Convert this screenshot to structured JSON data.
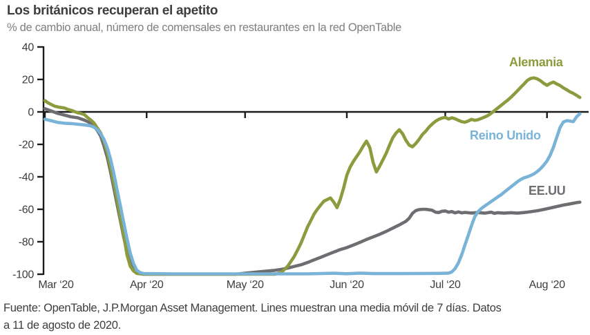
{
  "header": {
    "title": "Los británicos recuperan el apetito",
    "subtitle": "% de cambio anual, número de comensales en restaurantes en la red OpenTable"
  },
  "footer": {
    "line1": "Fuente: OpenTable, J.P.Morgan Asset Management. Lines muestran una media móvil de 7 días. Datos",
    "line2": "a 11 de agosto de 2020."
  },
  "colors": {
    "axis": "#1a1a1a",
    "title_text": "#3d3d3d",
    "subtitle_text": "#7e7e7e",
    "germany": "#8d9a3d",
    "uk": "#79b3d7",
    "us": "#6d6e71"
  },
  "chart_data": {
    "type": "line",
    "title": "Los británicos recuperan el apetito",
    "subtitle": "% de cambio anual, número de comensales en restaurantes en la red OpenTable",
    "source": "Fuente: OpenTable, J.P.Morgan Asset Management. Lines muestran una media móvil de 7 días. Datos a 11 de agosto de 2020.",
    "xlabel": "",
    "ylabel": "% de cambio anual",
    "grid": false,
    "legend_position": "inline-labels",
    "ylim": [
      -100,
      40
    ],
    "y_ticks": [
      40,
      20,
      0,
      -20,
      -40,
      -60,
      -80,
      -100
    ],
    "x_unit": "days since 1 Mar 2020, data through 11 Aug 2020",
    "x_ticks": [
      {
        "day": 0,
        "label": "Mar ‘20"
      },
      {
        "day": 31,
        "label": "Apr ‘20"
      },
      {
        "day": 61,
        "label": "May ‘20"
      },
      {
        "day": 92,
        "label": "Jun ‘20"
      },
      {
        "day": 122,
        "label": "Jul ‘20"
      },
      {
        "day": 153,
        "label": "Aug ‘20"
      }
    ],
    "series": [
      {
        "name": "EE.UU",
        "color": "#6d6e71",
        "points": [
          [
            0,
            2
          ],
          [
            2,
            0.5
          ],
          [
            4,
            -1
          ],
          [
            6,
            -2
          ],
          [
            8,
            -3
          ],
          [
            10,
            -3.6
          ],
          [
            12,
            -5
          ],
          [
            13,
            -6
          ],
          [
            14,
            -7
          ],
          [
            15,
            -9
          ],
          [
            16,
            -11.5
          ],
          [
            17,
            -15
          ],
          [
            18,
            -21
          ],
          [
            19,
            -28
          ],
          [
            20,
            -37
          ],
          [
            21,
            -47
          ],
          [
            22,
            -57
          ],
          [
            23,
            -67
          ],
          [
            24,
            -77
          ],
          [
            25,
            -86
          ],
          [
            26,
            -92
          ],
          [
            27,
            -96.5
          ],
          [
            28,
            -98.5
          ],
          [
            29,
            -99.5
          ],
          [
            30,
            -100
          ],
          [
            40,
            -100
          ],
          [
            50,
            -100
          ],
          [
            58,
            -100
          ],
          [
            62,
            -99.2
          ],
          [
            66,
            -98.4
          ],
          [
            70,
            -97.6
          ],
          [
            72,
            -97
          ],
          [
            74,
            -96.2
          ],
          [
            76,
            -95.2
          ],
          [
            78,
            -94.2
          ],
          [
            80,
            -92.8
          ],
          [
            82,
            -91.2
          ],
          [
            84,
            -89.6
          ],
          [
            86,
            -88
          ],
          [
            88,
            -86.4
          ],
          [
            90,
            -84.8
          ],
          [
            92,
            -83.6
          ],
          [
            94,
            -82
          ],
          [
            96,
            -80.4
          ],
          [
            98,
            -78.6
          ],
          [
            100,
            -77
          ],
          [
            102,
            -75.4
          ],
          [
            104,
            -73.6
          ],
          [
            106,
            -71.6
          ],
          [
            108,
            -69.6
          ],
          [
            110,
            -67.4
          ],
          [
            111,
            -65.5
          ],
          [
            112,
            -62.5
          ],
          [
            113,
            -60.8
          ],
          [
            114,
            -60.2
          ],
          [
            115,
            -60
          ],
          [
            116,
            -60
          ],
          [
            117,
            -60.3
          ],
          [
            118,
            -60.6
          ],
          [
            119,
            -61.8
          ],
          [
            120,
            -62
          ],
          [
            121,
            -61.2
          ],
          [
            122,
            -61
          ],
          [
            123,
            -61.8
          ],
          [
            124,
            -61.4
          ],
          [
            125,
            -62.2
          ],
          [
            126,
            -61.6
          ],
          [
            127,
            -62.2
          ],
          [
            128,
            -61.9
          ],
          [
            130,
            -62.3
          ],
          [
            132,
            -62
          ],
          [
            134,
            -62.4
          ],
          [
            136,
            -61.8
          ],
          [
            137,
            -62.5
          ],
          [
            138,
            -62.1
          ],
          [
            140,
            -62.4
          ],
          [
            142,
            -62.1
          ],
          [
            144,
            -62.4
          ],
          [
            146,
            -62
          ],
          [
            148,
            -61.5
          ],
          [
            150,
            -60.9
          ],
          [
            152,
            -60.1
          ],
          [
            154,
            -59.2
          ],
          [
            156,
            -58.3
          ],
          [
            158,
            -57.4
          ],
          [
            160,
            -56.7
          ],
          [
            162,
            -55.9
          ],
          [
            163,
            -55.6
          ]
        ]
      },
      {
        "name": "Alemania",
        "color": "#8d9a3d",
        "points": [
          [
            0,
            7
          ],
          [
            1,
            5.5
          ],
          [
            2,
            4.5
          ],
          [
            3,
            3.5
          ],
          [
            4,
            3
          ],
          [
            5,
            2.7
          ],
          [
            6,
            2.4
          ],
          [
            7,
            1.5
          ],
          [
            8,
            1
          ],
          [
            9,
            0.2
          ],
          [
            10,
            -0.5
          ],
          [
            11,
            -1
          ],
          [
            12,
            -1.6
          ],
          [
            13,
            -3.5
          ],
          [
            14,
            -5
          ],
          [
            15,
            -7
          ],
          [
            16,
            -10
          ],
          [
            17,
            -13
          ],
          [
            18,
            -18
          ],
          [
            19,
            -25
          ],
          [
            20,
            -34
          ],
          [
            21,
            -44
          ],
          [
            22,
            -54
          ],
          [
            23,
            -65
          ],
          [
            24,
            -76
          ],
          [
            25,
            -88
          ],
          [
            26,
            -95
          ],
          [
            27,
            -98
          ],
          [
            28,
            -99.5
          ],
          [
            30,
            -100
          ],
          [
            40,
            -100
          ],
          [
            50,
            -100
          ],
          [
            60,
            -100
          ],
          [
            70,
            -100
          ],
          [
            71,
            -99.5
          ],
          [
            72,
            -99
          ],
          [
            73,
            -97
          ],
          [
            74,
            -95
          ],
          [
            75,
            -92
          ],
          [
            76,
            -89
          ],
          [
            77,
            -85
          ],
          [
            78,
            -81
          ],
          [
            79,
            -76
          ],
          [
            80,
            -71
          ],
          [
            81,
            -67
          ],
          [
            82,
            -63
          ],
          [
            83,
            -60
          ],
          [
            84,
            -57.5
          ],
          [
            85,
            -55
          ],
          [
            86,
            -54
          ],
          [
            87,
            -53
          ],
          [
            88,
            -55.5
          ],
          [
            89,
            -59
          ],
          [
            90,
            -54
          ],
          [
            91,
            -47
          ],
          [
            92,
            -39
          ],
          [
            93,
            -34
          ],
          [
            94,
            -30.5
          ],
          [
            95,
            -27.5
          ],
          [
            96,
            -24.5
          ],
          [
            97,
            -21
          ],
          [
            98,
            -18
          ],
          [
            99,
            -22
          ],
          [
            100,
            -31
          ],
          [
            101,
            -37
          ],
          [
            102,
            -33.5
          ],
          [
            103,
            -29.5
          ],
          [
            104,
            -25.5
          ],
          [
            105,
            -20.5
          ],
          [
            106,
            -16
          ],
          [
            107,
            -13
          ],
          [
            108,
            -11
          ],
          [
            109,
            -13.5
          ],
          [
            110,
            -17.5
          ],
          [
            111,
            -20.5
          ],
          [
            112,
            -21.5
          ],
          [
            113,
            -19.5
          ],
          [
            114,
            -17
          ],
          [
            115,
            -14
          ],
          [
            116,
            -12
          ],
          [
            117,
            -9.5
          ],
          [
            118,
            -7.5
          ],
          [
            119,
            -5.8
          ],
          [
            120,
            -4.6
          ],
          [
            121,
            -3.8
          ],
          [
            122,
            -3.4
          ],
          [
            123,
            -4.4
          ],
          [
            124,
            -3.6
          ],
          [
            125,
            -4.2
          ],
          [
            126,
            -5.2
          ],
          [
            127,
            -6
          ],
          [
            128,
            -6.4
          ],
          [
            129,
            -5.6
          ],
          [
            130,
            -4.6
          ],
          [
            131,
            -5.2
          ],
          [
            132,
            -4.8
          ],
          [
            133,
            -4
          ],
          [
            134,
            -3.2
          ],
          [
            135,
            -2.2
          ],
          [
            136,
            -0.8
          ],
          [
            137,
            0.8
          ],
          [
            138,
            2.4
          ],
          [
            139,
            4
          ],
          [
            140,
            5.6
          ],
          [
            141,
            7.2
          ],
          [
            142,
            9
          ],
          [
            143,
            11
          ],
          [
            144,
            13
          ],
          [
            145,
            15.2
          ],
          [
            146,
            17.2
          ],
          [
            147,
            19.4
          ],
          [
            148,
            20.6
          ],
          [
            149,
            21
          ],
          [
            150,
            20.4
          ],
          [
            151,
            19.2
          ],
          [
            152,
            17.6
          ],
          [
            153,
            16.4
          ],
          [
            154,
            17.6
          ],
          [
            155,
            18.4
          ],
          [
            156,
            17.2
          ],
          [
            157,
            16.2
          ],
          [
            158,
            14.8
          ],
          [
            159,
            13.6
          ],
          [
            160,
            12.4
          ],
          [
            161,
            11.4
          ],
          [
            162,
            10.2
          ],
          [
            163,
            8.9
          ]
        ]
      },
      {
        "name": "Reino Unido",
        "color": "#79b3d7",
        "points": [
          [
            0,
            -4.5
          ],
          [
            2,
            -5.5
          ],
          [
            4,
            -6.5
          ],
          [
            6,
            -7
          ],
          [
            8,
            -7.2
          ],
          [
            10,
            -7.6
          ],
          [
            12,
            -8
          ],
          [
            14,
            -8.6
          ],
          [
            15,
            -9.5
          ],
          [
            16,
            -11
          ],
          [
            17,
            -13.5
          ],
          [
            18,
            -17
          ],
          [
            19,
            -22
          ],
          [
            20,
            -29
          ],
          [
            21,
            -38
          ],
          [
            22,
            -48
          ],
          [
            23,
            -58
          ],
          [
            24,
            -68
          ],
          [
            25,
            -78
          ],
          [
            26,
            -87
          ],
          [
            27,
            -93.5
          ],
          [
            28,
            -97.5
          ],
          [
            29,
            -99
          ],
          [
            30,
            -99.6
          ],
          [
            40,
            -99.8
          ],
          [
            50,
            -99.8
          ],
          [
            60,
            -99.8
          ],
          [
            70,
            -99.8
          ],
          [
            80,
            -99.8
          ],
          [
            88,
            -99.4
          ],
          [
            92,
            -99.7
          ],
          [
            96,
            -99.3
          ],
          [
            100,
            -99.6
          ],
          [
            110,
            -99.6
          ],
          [
            120,
            -99.5
          ],
          [
            123,
            -99.3
          ],
          [
            124,
            -98.6
          ],
          [
            125,
            -96.5
          ],
          [
            126,
            -93
          ],
          [
            127,
            -88
          ],
          [
            128,
            -82
          ],
          [
            129,
            -76
          ],
          [
            130,
            -70
          ],
          [
            131,
            -64.5
          ],
          [
            132,
            -61.5
          ],
          [
            133,
            -59.5
          ],
          [
            134,
            -58
          ],
          [
            135,
            -56.6
          ],
          [
            136,
            -55.2
          ],
          [
            137,
            -53.8
          ],
          [
            138,
            -52.4
          ],
          [
            139,
            -51
          ],
          [
            140,
            -49.4
          ],
          [
            141,
            -47.8
          ],
          [
            142,
            -46.2
          ],
          [
            143,
            -44.6
          ],
          [
            144,
            -43
          ],
          [
            145,
            -41.6
          ],
          [
            146,
            -40.6
          ],
          [
            147,
            -40
          ],
          [
            148,
            -39.2
          ],
          [
            149,
            -38.2
          ],
          [
            150,
            -36.8
          ],
          [
            151,
            -35
          ],
          [
            152,
            -32.8
          ],
          [
            153,
            -30.2
          ],
          [
            154,
            -26.5
          ],
          [
            155,
            -21.5
          ],
          [
            156,
            -15.5
          ],
          [
            157,
            -9.5
          ],
          [
            158,
            -6.2
          ],
          [
            159,
            -5.4
          ],
          [
            160,
            -5.6
          ],
          [
            161,
            -6
          ],
          [
            162,
            -3
          ],
          [
            163,
            -1.2
          ]
        ]
      }
    ]
  }
}
